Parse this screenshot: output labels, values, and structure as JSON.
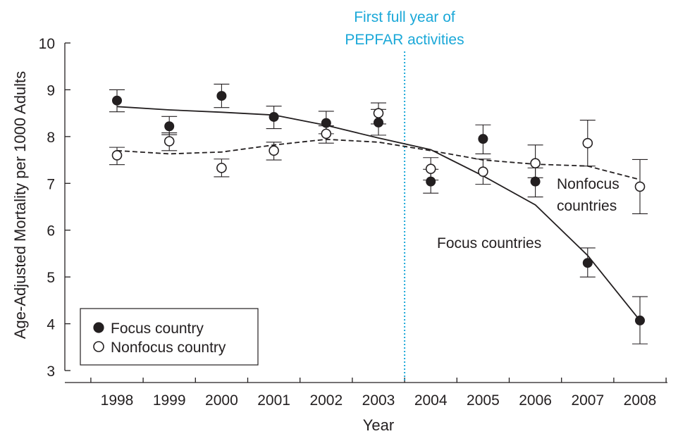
{
  "chart_data": {
    "type": "scatter",
    "title": "",
    "xlabel": "Year",
    "ylabel": "Age-Adjusted Mortality per 1000 Adults",
    "ylim": [
      3,
      10
    ],
    "yticks": [
      "3",
      "4",
      "5",
      "6",
      "7",
      "8",
      "9",
      "10"
    ],
    "categories": [
      "1998",
      "1999",
      "2000",
      "2001",
      "2002",
      "2003",
      "2004",
      "2005",
      "2006",
      "2007",
      "2008"
    ],
    "grid": false,
    "legend_position": "bottom-left",
    "series": [
      {
        "name": "Focus country",
        "marker": "filled-circle",
        "values": [
          8.77,
          8.22,
          8.87,
          8.42,
          8.29,
          8.3,
          7.04,
          7.95,
          7.04,
          5.3,
          4.07
        ],
        "error_low": [
          8.53,
          8.04,
          8.62,
          8.17,
          8.06,
          8.03,
          6.79,
          7.63,
          6.71,
          5.0,
          3.57
        ],
        "error_high": [
          9.0,
          8.43,
          9.12,
          8.65,
          8.54,
          8.58,
          7.3,
          8.25,
          7.33,
          5.62,
          4.58
        ],
        "trend": [
          8.64,
          8.57,
          8.52,
          8.46,
          8.24,
          7.97,
          7.72,
          7.16,
          6.54,
          5.46,
          4.07
        ],
        "trend_style": "solid"
      },
      {
        "name": "Nonfocus country",
        "marker": "open-circle",
        "values": [
          7.6,
          7.9,
          7.33,
          7.7,
          8.06,
          8.5,
          7.31,
          7.25,
          7.43,
          7.86,
          6.93
        ],
        "error_low": [
          7.4,
          7.7,
          7.14,
          7.5,
          7.86,
          8.27,
          7.07,
          6.98,
          7.12,
          7.37,
          6.35
        ],
        "error_high": [
          7.77,
          8.08,
          7.52,
          7.88,
          8.23,
          8.72,
          7.55,
          7.52,
          7.82,
          8.35,
          7.51
        ],
        "trend": [
          7.7,
          7.63,
          7.67,
          7.82,
          7.94,
          7.88,
          7.7,
          7.5,
          7.41,
          7.37,
          7.08
        ],
        "trend_style": "dashed"
      }
    ],
    "vertical_marker": {
      "x_between": [
        "2003",
        "2004"
      ],
      "label_lines": [
        "First full year of",
        "PEPFAR activities"
      ],
      "color": "#1ba8d8",
      "style": "dotted"
    },
    "annotations": [
      {
        "text_lines": [
          "Nonfocus",
          "countries"
        ],
        "series": "Nonfocus country"
      },
      {
        "text_lines": [
          "Focus countries"
        ],
        "series": "Focus country"
      }
    ],
    "colors": {
      "ink": "#231f20",
      "marker_line": "#1ba8d8"
    }
  }
}
